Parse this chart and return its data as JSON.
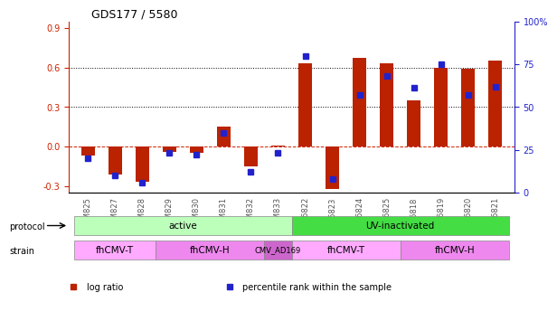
{
  "title": "GDS177 / 5580",
  "samples": [
    "GSM825",
    "GSM827",
    "GSM828",
    "GSM829",
    "GSM830",
    "GSM831",
    "GSM832",
    "GSM833",
    "GSM6822",
    "GSM6823",
    "GSM6824",
    "GSM6825",
    "GSM6818",
    "GSM6819",
    "GSM6820",
    "GSM6821"
  ],
  "log_ratio": [
    -0.07,
    -0.21,
    -0.27,
    -0.04,
    -0.05,
    0.15,
    -0.15,
    0.01,
    0.63,
    -0.32,
    0.67,
    0.63,
    0.35,
    0.6,
    0.59,
    0.65
  ],
  "percentile": [
    0.2,
    0.1,
    0.06,
    0.23,
    0.22,
    0.35,
    0.12,
    0.23,
    0.8,
    0.08,
    0.57,
    0.68,
    0.61,
    0.75,
    0.57,
    0.62
  ],
  "ylim_left": [
    -0.35,
    0.95
  ],
  "ylim_right": [
    0,
    100
  ],
  "yticks_left": [
    -0.3,
    0.0,
    0.3,
    0.6,
    0.9
  ],
  "yticks_right": [
    0,
    25,
    50,
    75,
    100
  ],
  "bar_color": "#BB2200",
  "dot_color": "#2222CC",
  "protocol_groups": [
    {
      "label": "active",
      "start": 0,
      "end": 8,
      "color": "#AAFFAA"
    },
    {
      "label": "UV-inactivated",
      "start": 8,
      "end": 16,
      "color": "#44DD44"
    }
  ],
  "strain_groups": [
    {
      "label": "fhCMV-T",
      "start": 0,
      "end": 3,
      "color": "#FFAAFF"
    },
    {
      "label": "fhCMV-H",
      "start": 3,
      "end": 7,
      "color": "#EE88EE"
    },
    {
      "label": "CMV_AD169",
      "start": 7,
      "end": 8,
      "color": "#DD66DD"
    },
    {
      "label": "fhCMV-T",
      "start": 8,
      "end": 12,
      "color": "#FFAAFF"
    },
    {
      "label": "fhCMV-H",
      "start": 12,
      "end": 16,
      "color": "#EE88EE"
    }
  ],
  "tick_label_color": "#555555",
  "left_axis_color": "#CC2200",
  "right_axis_color": "#2222CC",
  "grid_color": "#000000",
  "zero_line_color": "#CC2200",
  "legend_items": [
    {
      "label": "log ratio",
      "color": "#BB2200"
    },
    {
      "label": "percentile rank within the sample",
      "color": "#2222CC"
    }
  ]
}
